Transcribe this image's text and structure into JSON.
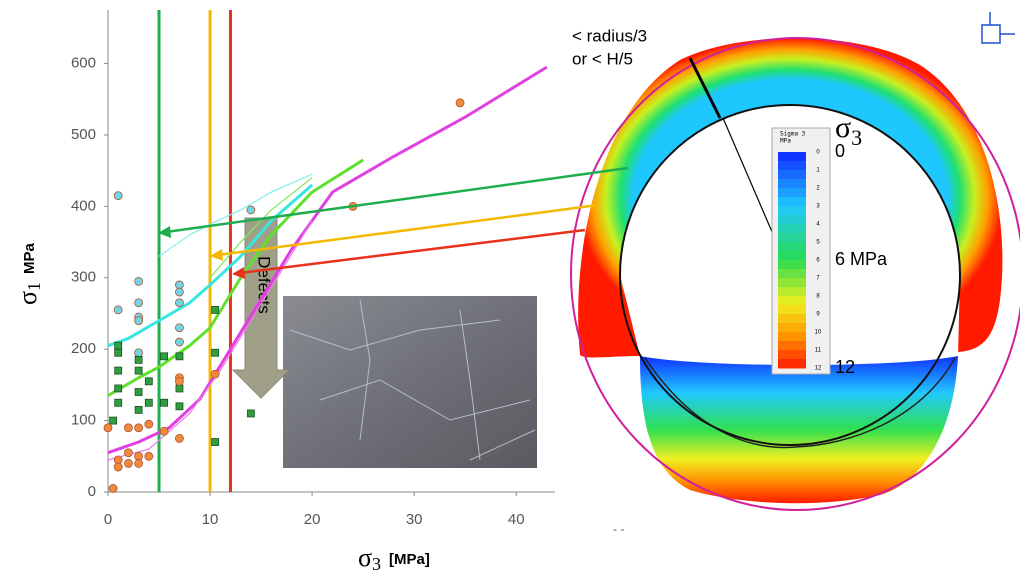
{
  "chart_data": {
    "type": "scatter",
    "x_label": {
      "symbol": "σ",
      "subscript": "3",
      "unit": "[MPa]"
    },
    "y_label": {
      "symbol": "σ",
      "subscript": "1",
      "unit": "MPa"
    },
    "xlim": [
      0,
      43.8
    ],
    "ylim": [
      0,
      675
    ],
    "xticks": [
      0,
      10,
      20,
      30,
      40
    ],
    "yticks": [
      0,
      100,
      200,
      300,
      400,
      500,
      600
    ],
    "vlines": [
      {
        "x": 5,
        "color": "#1fae4f"
      },
      {
        "x": 10,
        "color": "#f5b800"
      },
      {
        "x": 12,
        "color": "#e8321e"
      }
    ],
    "series": [
      {
        "mode": "line",
        "color": "#37e6e0",
        "width": 3,
        "x": [
          0,
          2,
          5,
          8,
          10,
          13,
          16,
          20
        ],
        "values": [
          205,
          215,
          240,
          265,
          290,
          330,
          380,
          430
        ]
      },
      {
        "mode": "line",
        "color": "#7ff0ea",
        "width": 1.2,
        "x": [
          5,
          8,
          10,
          13,
          16,
          20
        ],
        "values": [
          330,
          360,
          375,
          395,
          420,
          445
        ]
      },
      {
        "mode": "line",
        "color": "#5fe02c",
        "width": 3,
        "x": [
          0,
          3,
          5,
          8,
          10,
          13,
          16,
          20,
          25
        ],
        "values": [
          135,
          160,
          175,
          205,
          230,
          300,
          360,
          420,
          465
        ]
      },
      {
        "mode": "line",
        "color": "#7ee85a",
        "width": 1.2,
        "x": [
          10,
          13,
          16,
          20
        ],
        "values": [
          300,
          350,
          395,
          440
        ]
      },
      {
        "mode": "line",
        "color": "#e040e0",
        "width": 3,
        "x": [
          0,
          3,
          6,
          9,
          12,
          15,
          18,
          22,
          28,
          35,
          43
        ],
        "values": [
          55,
          70,
          90,
          130,
          200,
          270,
          340,
          420,
          470,
          525,
          595
        ]
      },
      {
        "mode": "line",
        "color": "#ec7aec",
        "width": 1.2,
        "x": [
          0,
          4,
          8,
          11,
          14,
          17,
          20
        ],
        "values": [
          45,
          60,
          110,
          170,
          240,
          310,
          380
        ]
      },
      {
        "mode": "marker",
        "marker": "circle",
        "color": "#6fd6e6",
        "x": [
          1,
          1,
          3,
          3,
          3,
          7,
          7,
          7,
          7,
          7,
          14,
          3,
          3
        ],
        "values": [
          415,
          255,
          265,
          295,
          195,
          290,
          280,
          265,
          230,
          210,
          395,
          245,
          240
        ]
      },
      {
        "mode": "marker",
        "marker": "square",
        "color": "#2fa040",
        "x": [
          1,
          1,
          1,
          1,
          1,
          0.5,
          3,
          3,
          3,
          3,
          4,
          4,
          5.5,
          5.5,
          7,
          7,
          7,
          10.5,
          10.5,
          10.5,
          14
        ],
        "values": [
          195,
          205,
          170,
          145,
          125,
          100,
          185,
          170,
          140,
          115,
          155,
          125,
          190,
          125,
          190,
          145,
          120,
          255,
          195,
          70,
          110
        ]
      },
      {
        "mode": "marker",
        "marker": "circle",
        "color": "#f28a3c",
        "x": [
          0,
          1,
          1,
          2,
          2,
          3,
          3,
          3,
          4,
          5.5,
          7,
          7,
          7,
          10.5,
          24,
          34.5,
          0.5,
          2,
          4
        ],
        "values": [
          90,
          45,
          35,
          90,
          40,
          50,
          40,
          90,
          95,
          85,
          160,
          75,
          155,
          165,
          400,
          545,
          5,
          55,
          50
        ]
      }
    ],
    "annotations": {
      "defects": "Defects",
      "thickness_1": "< radius/3",
      "thickness_2": "or < H/5",
      "stray": "- -"
    },
    "colorbar": {
      "title_1": "Sigma 3",
      "title_2": "MPa",
      "symbol": "σ",
      "subscript": "3",
      "small_ticks": [
        0,
        1,
        2,
        3,
        4,
        5,
        6,
        7,
        8,
        9,
        10,
        11,
        12
      ],
      "labels": [
        0,
        {
          "value": 6,
          "label": "6 MPa"
        },
        12
      ],
      "lim": [
        0,
        12
      ]
    }
  }
}
